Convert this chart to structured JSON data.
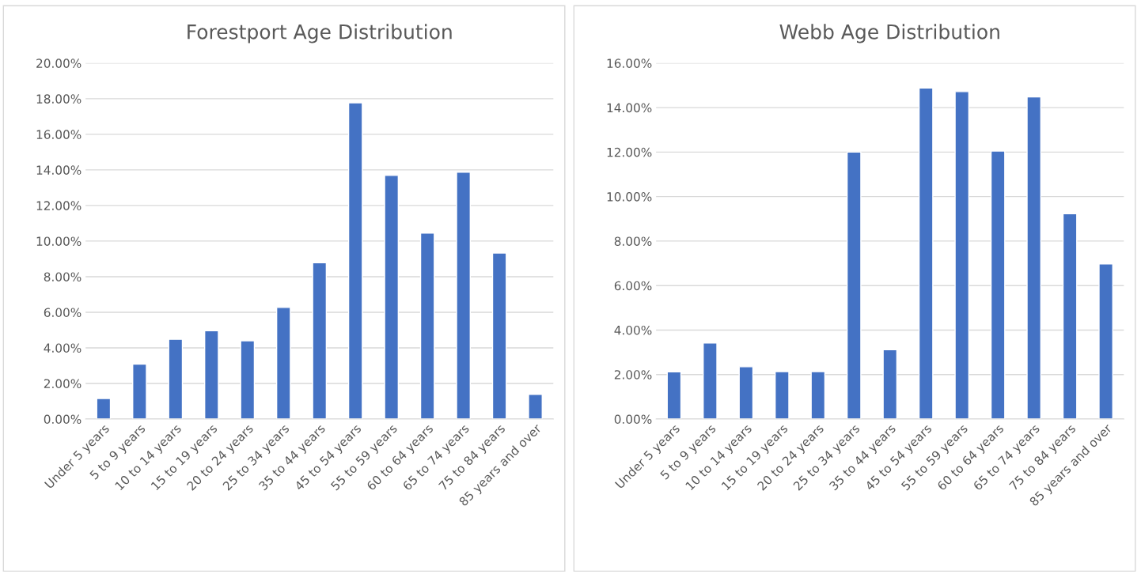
{
  "chart_data": [
    {
      "type": "bar",
      "title": "Forestport Age Distribution",
      "categories": [
        "Under 5 years",
        "5 to 9 years",
        "10 to 14 years",
        "15 to 19 years",
        "20 to 24 years",
        "25 to 34 years",
        "35 to 44 years",
        "45 to 54 years",
        "55 to 59 years",
        "60 to 64 years",
        "65 to 74 years",
        "75 to 84 years",
        "85 years and over"
      ],
      "values": [
        1.15,
        3.08,
        4.48,
        4.96,
        4.4,
        6.27,
        8.78,
        17.77,
        13.69,
        10.45,
        13.87,
        9.33,
        1.39
      ],
      "color": "#4472c4",
      "ylim": [
        0,
        20
      ],
      "yticks": [
        {
          "value": 0,
          "label": "0.00%"
        },
        {
          "value": 2,
          "label": "2.00%"
        },
        {
          "value": 4,
          "label": "4.00%"
        },
        {
          "value": 6,
          "label": "6.00%"
        },
        {
          "value": 8,
          "label": "8.00%"
        },
        {
          "value": 10,
          "label": "10.00%"
        },
        {
          "value": 12,
          "label": "12.00%"
        },
        {
          "value": 14,
          "label": "14.00%"
        },
        {
          "value": 16,
          "label": "16.00%"
        },
        {
          "value": 18,
          "label": "18.00%"
        },
        {
          "value": 20,
          "label": "20.00%"
        }
      ],
      "grid": "y",
      "legend": false
    },
    {
      "type": "bar",
      "title": "Webb Age Distribution",
      "categories": [
        "Under 5 years",
        "5 to 9 years",
        "10 to 14 years",
        "15 to 19 years",
        "20 to 24 years",
        "25 to 34 years",
        "35 to 44 years",
        "45 to 54 years",
        "55 to 59 years",
        "60 to 64 years",
        "65 to 74 years",
        "75 to 84 years",
        "85 years and over"
      ],
      "values": [
        2.12,
        3.42,
        2.35,
        2.13,
        2.13,
        12.0,
        3.12,
        14.88,
        14.72,
        12.05,
        14.48,
        9.23,
        6.97
      ],
      "color": "#4472c4",
      "ylim": [
        0,
        16
      ],
      "yticks": [
        {
          "value": 0,
          "label": "0.00%"
        },
        {
          "value": 2,
          "label": "2.00%"
        },
        {
          "value": 4,
          "label": "4.00%"
        },
        {
          "value": 6,
          "label": "6.00%"
        },
        {
          "value": 8,
          "label": "8.00%"
        },
        {
          "value": 10,
          "label": "10.00%"
        },
        {
          "value": 12,
          "label": "12.00%"
        },
        {
          "value": 14,
          "label": "14.00%"
        },
        {
          "value": 16,
          "label": "16.00%"
        }
      ],
      "grid": "y",
      "legend": false
    }
  ]
}
